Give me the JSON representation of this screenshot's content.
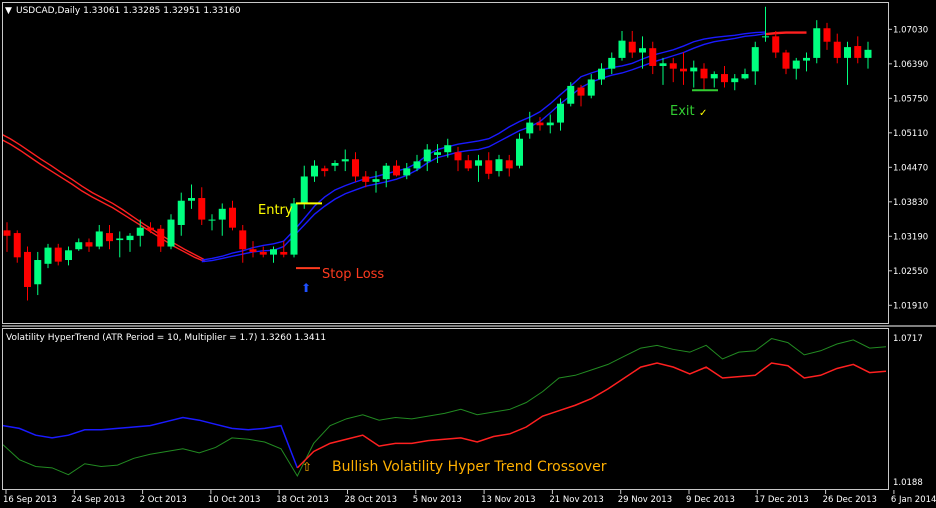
{
  "colors": {
    "bull": "#00ff7f",
    "bear": "#ff0000",
    "trend_up": "#1a1aff",
    "trend_down": "#ff2020",
    "osc_fast": "#228b22",
    "annotation_entry": "#ffff00",
    "annotation_stop": "#ff3b1f",
    "annotation_exit": "#32cd32",
    "annotation_crossover": "#ffb000",
    "arrow": "#1e50ff"
  },
  "main_panel": {
    "header": "USDCAD,Daily  1.33061 1.33285 1.32951 1.33160",
    "y_ticks": [
      "1.07030",
      "1.06390",
      "1.05750",
      "1.05110",
      "1.04470",
      "1.03830",
      "1.03190",
      "1.02550",
      "1.01910"
    ],
    "annotations": {
      "entry": "Entry",
      "stop_loss": "Stop Loss",
      "exit": "Exit",
      "exit_mark": "✓",
      "arrow": "⬆"
    }
  },
  "sub_panel": {
    "header": "Volatility HyperTrend (ATR Period = 10, Multiplier = 1.7) 1.3260 1.3411",
    "y_ticks": [
      "1.0717",
      "1.0188"
    ],
    "annotation": "Bullish Volatility Hyper Trend Crossover",
    "annotation_mark": "⇧"
  },
  "x_ticks": [
    "16 Sep 2013",
    "24 Sep 2013",
    "2 Oct 2013",
    "10 Oct 2013",
    "18 Oct 2013",
    "28 Oct 2013",
    "5 Nov 2013",
    "13 Nov 2013",
    "21 Nov 2013",
    "29 Nov 2013",
    "9 Dec 2013",
    "17 Dec 2013",
    "26 Dec 2013",
    "6 Jan 2014"
  ],
  "chart_data": [
    {
      "type": "candlestick",
      "symbol": "USDCAD",
      "timeframe": "Daily",
      "ylim": [
        1.016,
        1.075
      ],
      "candles": [
        {
          "o": 1.033,
          "h": 1.0345,
          "l": 1.029,
          "c": 1.032
        },
        {
          "o": 1.0325,
          "h": 1.033,
          "l": 1.027,
          "c": 1.028
        },
        {
          "o": 1.029,
          "h": 1.03,
          "l": 1.02,
          "c": 1.0225
        },
        {
          "o": 1.023,
          "h": 1.029,
          "l": 1.021,
          "c": 1.0275
        },
        {
          "o": 1.0268,
          "h": 1.0305,
          "l": 1.026,
          "c": 1.0298
        },
        {
          "o": 1.0298,
          "h": 1.0305,
          "l": 1.0265,
          "c": 1.0272
        },
        {
          "o": 1.0275,
          "h": 1.03,
          "l": 1.0265,
          "c": 1.0293
        },
        {
          "o": 1.0295,
          "h": 1.0315,
          "l": 1.0292,
          "c": 1.0308
        },
        {
          "o": 1.0308,
          "h": 1.0315,
          "l": 1.029,
          "c": 1.03
        },
        {
          "o": 1.03,
          "h": 1.034,
          "l": 1.0295,
          "c": 1.0328
        },
        {
          "o": 1.0325,
          "h": 1.034,
          "l": 1.0295,
          "c": 1.031
        },
        {
          "o": 1.0312,
          "h": 1.0328,
          "l": 1.028,
          "c": 1.0315
        },
        {
          "o": 1.0312,
          "h": 1.0325,
          "l": 1.029,
          "c": 1.032
        },
        {
          "o": 1.032,
          "h": 1.035,
          "l": 1.03,
          "c": 1.0335
        },
        {
          "o": 1.0335,
          "h": 1.0345,
          "l": 1.0325,
          "c": 1.033
        },
        {
          "o": 1.0333,
          "h": 1.034,
          "l": 1.029,
          "c": 1.03
        },
        {
          "o": 1.03,
          "h": 1.036,
          "l": 1.0295,
          "c": 1.035
        },
        {
          "o": 1.034,
          "h": 1.04,
          "l": 1.032,
          "c": 1.0385
        },
        {
          "o": 1.0385,
          "h": 1.0415,
          "l": 1.037,
          "c": 1.039
        },
        {
          "o": 1.039,
          "h": 1.041,
          "l": 1.034,
          "c": 1.035
        },
        {
          "o": 1.035,
          "h": 1.036,
          "l": 1.033,
          "c": 1.035
        },
        {
          "o": 1.035,
          "h": 1.038,
          "l": 1.032,
          "c": 1.037
        },
        {
          "o": 1.0372,
          "h": 1.0385,
          "l": 1.033,
          "c": 1.0335
        },
        {
          "o": 1.033,
          "h": 1.034,
          "l": 1.027,
          "c": 1.0295
        },
        {
          "o": 1.0295,
          "h": 1.031,
          "l": 1.028,
          "c": 1.029
        },
        {
          "o": 1.029,
          "h": 1.03,
          "l": 1.028,
          "c": 1.0285
        },
        {
          "o": 1.0285,
          "h": 1.03,
          "l": 1.027,
          "c": 1.0295
        },
        {
          "o": 1.029,
          "h": 1.031,
          "l": 1.028,
          "c": 1.0285
        },
        {
          "o": 1.0285,
          "h": 1.039,
          "l": 1.028,
          "c": 1.038
        },
        {
          "o": 1.038,
          "h": 1.045,
          "l": 1.037,
          "c": 1.043
        },
        {
          "o": 1.043,
          "h": 1.046,
          "l": 1.042,
          "c": 1.045
        },
        {
          "o": 1.0445,
          "h": 1.045,
          "l": 1.043,
          "c": 1.044
        },
        {
          "o": 1.045,
          "h": 1.046,
          "l": 1.044,
          "c": 1.0455
        },
        {
          "o": 1.0458,
          "h": 1.048,
          "l": 1.044,
          "c": 1.0462
        },
        {
          "o": 1.0462,
          "h": 1.0475,
          "l": 1.042,
          "c": 1.043
        },
        {
          "o": 1.043,
          "h": 1.044,
          "l": 1.041,
          "c": 1.042
        },
        {
          "o": 1.042,
          "h": 1.044,
          "l": 1.04,
          "c": 1.0425
        },
        {
          "o": 1.0425,
          "h": 1.0455,
          "l": 1.041,
          "c": 1.045
        },
        {
          "o": 1.045,
          "h": 1.046,
          "l": 1.043,
          "c": 1.0432
        },
        {
          "o": 1.0432,
          "h": 1.0455,
          "l": 1.0425,
          "c": 1.0445
        },
        {
          "o": 1.0445,
          "h": 1.047,
          "l": 1.044,
          "c": 1.0458
        },
        {
          "o": 1.0458,
          "h": 1.049,
          "l": 1.044,
          "c": 1.048
        },
        {
          "o": 1.047,
          "h": 1.049,
          "l": 1.0455,
          "c": 1.0475
        },
        {
          "o": 1.0475,
          "h": 1.05,
          "l": 1.0465,
          "c": 1.0488
        },
        {
          "o": 1.0475,
          "h": 1.0485,
          "l": 1.044,
          "c": 1.046
        },
        {
          "o": 1.046,
          "h": 1.047,
          "l": 1.044,
          "c": 1.0445
        },
        {
          "o": 1.045,
          "h": 1.047,
          "l": 1.042,
          "c": 1.046
        },
        {
          "o": 1.046,
          "h": 1.0475,
          "l": 1.0425,
          "c": 1.0435
        },
        {
          "o": 1.044,
          "h": 1.047,
          "l": 1.043,
          "c": 1.0462
        },
        {
          "o": 1.046,
          "h": 1.047,
          "l": 1.043,
          "c": 1.0445
        },
        {
          "o": 1.045,
          "h": 1.051,
          "l": 1.0445,
          "c": 1.05
        },
        {
          "o": 1.051,
          "h": 1.055,
          "l": 1.05,
          "c": 1.053
        },
        {
          "o": 1.053,
          "h": 1.054,
          "l": 1.0515,
          "c": 1.0525
        },
        {
          "o": 1.0525,
          "h": 1.0545,
          "l": 1.051,
          "c": 1.053
        },
        {
          "o": 1.053,
          "h": 1.0575,
          "l": 1.0515,
          "c": 1.0565
        },
        {
          "o": 1.0565,
          "h": 1.0605,
          "l": 1.056,
          "c": 1.0598
        },
        {
          "o": 1.0595,
          "h": 1.06,
          "l": 1.056,
          "c": 1.058
        },
        {
          "o": 1.058,
          "h": 1.062,
          "l": 1.0575,
          "c": 1.061
        },
        {
          "o": 1.061,
          "h": 1.064,
          "l": 1.06,
          "c": 1.063
        },
        {
          "o": 1.063,
          "h": 1.066,
          "l": 1.062,
          "c": 1.065
        },
        {
          "o": 1.065,
          "h": 1.07,
          "l": 1.0645,
          "c": 1.0682
        },
        {
          "o": 1.068,
          "h": 1.07,
          "l": 1.065,
          "c": 1.066
        },
        {
          "o": 1.066,
          "h": 1.069,
          "l": 1.063,
          "c": 1.0668
        },
        {
          "o": 1.0668,
          "h": 1.068,
          "l": 1.062,
          "c": 1.0635
        },
        {
          "o": 1.0635,
          "h": 1.065,
          "l": 1.06,
          "c": 1.064
        },
        {
          "o": 1.064,
          "h": 1.065,
          "l": 1.0605,
          "c": 1.063
        },
        {
          "o": 1.063,
          "h": 1.066,
          "l": 1.06,
          "c": 1.0625
        },
        {
          "o": 1.0625,
          "h": 1.0645,
          "l": 1.0595,
          "c": 1.0632
        },
        {
          "o": 1.063,
          "h": 1.064,
          "l": 1.059,
          "c": 1.0612
        },
        {
          "o": 1.0612,
          "h": 1.0625,
          "l": 1.0595,
          "c": 1.062
        },
        {
          "o": 1.062,
          "h": 1.0635,
          "l": 1.0595,
          "c": 1.0605
        },
        {
          "o": 1.0605,
          "h": 1.062,
          "l": 1.059,
          "c": 1.0612
        },
        {
          "o": 1.0612,
          "h": 1.063,
          "l": 1.061,
          "c": 1.062
        },
        {
          "o": 1.0625,
          "h": 1.068,
          "l": 1.06,
          "c": 1.067
        },
        {
          "o": 1.069,
          "h": 1.0745,
          "l": 1.068,
          "c": 1.069
        },
        {
          "o": 1.069,
          "h": 1.07,
          "l": 1.065,
          "c": 1.066
        },
        {
          "o": 1.066,
          "h": 1.0665,
          "l": 1.062,
          "c": 1.063
        },
        {
          "o": 1.063,
          "h": 1.065,
          "l": 1.061,
          "c": 1.0645
        },
        {
          "o": 1.0645,
          "h": 1.066,
          "l": 1.0625,
          "c": 1.065
        },
        {
          "o": 1.065,
          "h": 1.072,
          "l": 1.064,
          "c": 1.0705
        },
        {
          "o": 1.0705,
          "h": 1.0715,
          "l": 1.0665,
          "c": 1.068
        },
        {
          "o": 1.068,
          "h": 1.0695,
          "l": 1.064,
          "c": 1.065
        },
        {
          "o": 1.065,
          "h": 1.068,
          "l": 1.06,
          "c": 1.067
        },
        {
          "o": 1.0672,
          "h": 1.069,
          "l": 1.064,
          "c": 1.065
        },
        {
          "o": 1.065,
          "h": 1.068,
          "l": 1.063,
          "c": 1.0665
        }
      ],
      "trend_lines": [
        {
          "color": "red",
          "upper": [
            1.051,
            1.05,
            1.0488,
            1.0475,
            1.0462,
            1.045,
            1.0437,
            1.0425,
            1.0412,
            1.04,
            1.039,
            1.038,
            1.0368,
            1.0355,
            1.0342,
            1.033,
            1.0318,
            1.0306,
            1.0295,
            1.0285,
            1.0275
          ],
          "lower": [
            1.05,
            1.049,
            1.0478,
            1.0465,
            1.0452,
            1.044,
            1.0428,
            1.0416,
            1.0403,
            1.0392,
            1.0382,
            1.0372,
            1.036,
            1.0348,
            1.0336,
            1.0324,
            1.0312,
            1.03,
            1.029,
            1.028,
            1.0272
          ]
        },
        {
          "color": "blue",
          "upper": [
            1.0275,
            1.0278,
            1.0282,
            1.0288,
            1.0292,
            1.0298,
            1.0302,
            1.0305,
            1.031,
            1.033,
            1.0352,
            1.0375,
            1.0392,
            1.0405,
            1.0413,
            1.042,
            1.0426,
            1.043,
            1.0435,
            1.044,
            1.0445,
            1.0455,
            1.047,
            1.048,
            1.0485,
            1.049,
            1.0493,
            1.0496,
            1.05,
            1.051,
            1.0522,
            1.0532,
            1.054,
            1.055,
            1.0565,
            1.0582,
            1.0598,
            1.0615,
            1.0622,
            1.0628,
            1.0632,
            1.0635,
            1.064,
            1.0648,
            1.0655,
            1.066,
            1.0665,
            1.0672,
            1.068,
            1.0685,
            1.0688,
            1.069,
            1.0692,
            1.0695,
            1.0697,
            1.0698
          ],
          "lower": [
            1.0272,
            1.0274,
            1.0278,
            1.0282,
            1.0286,
            1.029,
            1.0292,
            1.0293,
            1.03,
            1.032,
            1.034,
            1.036,
            1.0375,
            1.0388,
            1.0398,
            1.0405,
            1.0412,
            1.0416,
            1.042,
            1.0425,
            1.0432,
            1.0442,
            1.0455,
            1.0465,
            1.047,
            1.0475,
            1.0478,
            1.048,
            1.0485,
            1.0495,
            1.0505,
            1.0515,
            1.0522,
            1.0532,
            1.0548,
            1.0565,
            1.058,
            1.0595,
            1.0605,
            1.0612,
            1.0618,
            1.0622,
            1.0628,
            1.0635,
            1.0642,
            1.0648,
            1.0654,
            1.066,
            1.0668,
            1.0675,
            1.068,
            1.0683,
            1.0686,
            1.069,
            1.0692,
            1.0695
          ]
        },
        {
          "color": "red",
          "upper": [
            1.0695,
            1.0697,
            1.0698,
            1.0698,
            1.0698
          ],
          "lower": [
            1.0693,
            1.0695,
            1.0696,
            1.0696,
            1.0696
          ]
        }
      ]
    },
    {
      "type": "line",
      "title": "Volatility HyperTrend (ATR Period = 10, Multiplier = 1.7)",
      "ylim": [
        1.0188,
        1.0717
      ],
      "series": [
        {
          "name": "line1",
          "color": "#228b22",
          "values": [
            1.0325,
            1.027,
            1.0245,
            1.024,
            1.0215,
            1.0255,
            1.0245,
            1.025,
            1.0275,
            1.029,
            1.03,
            1.031,
            1.0295,
            1.0315,
            1.035,
            1.0345,
            1.0335,
            1.031,
            1.021,
            1.033,
            1.0395,
            1.042,
            1.0435,
            1.0415,
            1.0425,
            1.042,
            1.043,
            1.044,
            1.0455,
            1.0435,
            1.0445,
            1.0455,
            1.048,
            1.052,
            1.057,
            1.058,
            1.06,
            1.062,
            1.065,
            1.068,
            1.069,
            1.0675,
            1.0665,
            1.069,
            1.064,
            1.0665,
            1.067,
            1.0715,
            1.07,
            1.0655,
            1.067,
            1.0695,
            1.071,
            1.068,
            1.0685
          ]
        },
        {
          "name": "line2",
          "color": "#2020ff_then_red",
          "values": [
            1.0395,
            1.0385,
            1.036,
            1.035,
            1.036,
            1.038,
            1.038,
            1.0385,
            1.039,
            1.0395,
            1.041,
            1.0425,
            1.0415,
            1.04,
            1.0385,
            1.038,
            1.0385,
            1.0395,
            1.024,
            1.03,
            1.033,
            1.0345,
            1.036,
            1.032,
            1.033,
            1.033,
            1.034,
            1.0345,
            1.035,
            1.0335,
            1.0355,
            1.0365,
            1.039,
            1.043,
            1.045,
            1.047,
            1.0495,
            1.053,
            1.057,
            1.061,
            1.0625,
            1.061,
            1.0585,
            1.061,
            1.057,
            1.0575,
            1.058,
            1.0625,
            1.0615,
            1.057,
            1.058,
            1.0605,
            1.062,
            1.059,
            1.0595
          ]
        }
      ]
    }
  ]
}
